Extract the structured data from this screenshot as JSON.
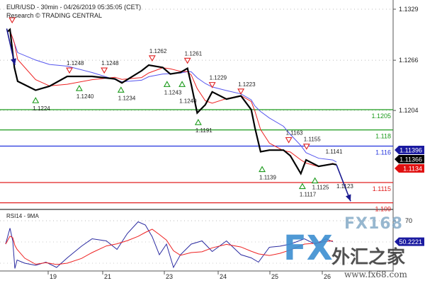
{
  "header": {
    "title": "EUR/USD - 30min - 04/26/2019 05:35:05 (CET)",
    "subtitle": "Research © TRADING CENTRAL"
  },
  "chart_data": [
    {
      "type": "line",
      "panel": "price",
      "ylim": [
        1.1085,
        1.1335
      ],
      "y_ticks": [
        "1.1329",
        "1.1266",
        "1.1204"
      ],
      "x_ticks": [
        "19",
        "21",
        "23",
        "24",
        "25",
        "26"
      ],
      "grid": true,
      "price": {
        "x": [
          18.25,
          18.3,
          18.38,
          18.44,
          18.77,
          19.05,
          19.7,
          20.61,
          21.4,
          21.63,
          22.27,
          22.5,
          22.95,
          23.11,
          23.3,
          23.43,
          23.5,
          23.61,
          23.76,
          23.89,
          24.16,
          24.44,
          24.64,
          24.71,
          24.82,
          24.99,
          25.26,
          25.39,
          25.59,
          25.69,
          25.93,
          26.2,
          26.27
        ],
        "y": [
          1.1301,
          1.1304,
          1.1257,
          1.124,
          1.1229,
          1.1234,
          1.1246,
          1.1246,
          1.1243,
          1.1238,
          1.1253,
          1.126,
          1.1257,
          1.1249,
          1.1251,
          1.1256,
          1.1236,
          1.1201,
          1.1211,
          1.1227,
          1.1218,
          1.1222,
          1.1205,
          1.1183,
          1.1153,
          1.1155,
          1.1155,
          1.1148,
          1.1126,
          1.1143,
          1.1135,
          1.1138,
          1.1137
        ]
      },
      "levels": [
        {
          "value": 1.1205,
          "label": "1.1205",
          "color": "#1a9a1a"
        },
        {
          "value": 1.118,
          "label": "1.118",
          "color": "#1a9a1a"
        },
        {
          "value": 1.116,
          "label": "1.116",
          "color": "#2233dd"
        },
        {
          "value": 1.1115,
          "label": "1.1115",
          "color": "#e02020"
        },
        {
          "value": 1.109,
          "label": "1.109",
          "color": "#e02020"
        }
      ],
      "markers": [
        {
          "x": 18.34,
          "y": 1.1315,
          "dir": "down",
          "label": ""
        },
        {
          "x": 19.78,
          "y": 1.1253,
          "dir": "down",
          "label": "1.1248"
        },
        {
          "x": 21.05,
          "y": 1.1253,
          "dir": "down",
          "label": "1.1248"
        },
        {
          "x": 22.61,
          "y": 1.1268,
          "dir": "down",
          "label": "1.1262"
        },
        {
          "x": 23.43,
          "y": 1.1265,
          "dir": "down",
          "label": "1.1261"
        },
        {
          "x": 23.89,
          "y": 1.1235,
          "dir": "down",
          "label": "1.1229"
        },
        {
          "x": 24.44,
          "y": 1.1227,
          "dir": "down",
          "label": "1.1223"
        },
        {
          "x": 25.36,
          "y": 1.1167,
          "dir": "down",
          "label": "1.1163"
        },
        {
          "x": 25.7,
          "y": 1.1159,
          "dir": "down",
          "label": "1.1155"
        },
        {
          "x": 18.77,
          "y": 1.1217,
          "dir": "up",
          "label": "1.1224"
        },
        {
          "x": 20.14,
          "y": 1.1232,
          "dir": "up",
          "label": "1.1240"
        },
        {
          "x": 21.6,
          "y": 1.123,
          "dir": "up",
          "label": "1.1234"
        },
        {
          "x": 23.05,
          "y": 1.1237,
          "dir": "up",
          "label": "1.1243"
        },
        {
          "x": 23.33,
          "y": 1.1237,
          "dir": "up",
          "label": "1.1240"
        },
        {
          "x": 23.63,
          "y": 1.119,
          "dir": "up",
          "label": "1.1191"
        },
        {
          "x": 24.85,
          "y": 1.1132,
          "dir": "up",
          "label": "1.1139"
        },
        {
          "x": 25.62,
          "y": 1.1111,
          "dir": "up",
          "label": "1.1117"
        },
        {
          "x": 25.86,
          "y": 1.1118,
          "dir": "up",
          "label": "1.1125"
        }
      ],
      "annotations": [
        {
          "x": 26.17,
          "y": 1.1151,
          "text": "1.1141"
        },
        {
          "x": 26.0,
          "y": 1.1108,
          "text": "1.1123"
        }
      ],
      "arrows": [
        {
          "from": [
            18.24,
            1.1305
          ],
          "to": [
            18.39,
            1.126
          ]
        },
        {
          "from": [
            26.27,
            1.1137
          ],
          "to": [
            26.54,
            1.1092
          ]
        }
      ],
      "badges": [
        {
          "text": "1.11396",
          "bg": "#1a1aa0",
          "value": 1.11396
        },
        {
          "text": "1.11366",
          "bg": "#000000",
          "value": 1.11366
        },
        {
          "text": "1.1134",
          "bg": "#e01010",
          "value": 1.1134
        }
      ],
      "colors": {
        "price": "#000000",
        "fast_ma": "#ee2222",
        "slow_ma": "#5555ee"
      }
    },
    {
      "type": "line",
      "panel": "rsi",
      "title": "RSI14 - 9MA",
      "y_ticks": [
        "70"
      ],
      "rsi": {
        "x": [
          18.22,
          18.3,
          18.35,
          18.39,
          18.43,
          18.57,
          18.77,
          18.96,
          19.31,
          19.7,
          20.22,
          20.61,
          21.12,
          21.47,
          21.81,
          22.16,
          22.39,
          22.61,
          22.84,
          23.04,
          23.17,
          23.3,
          23.5,
          23.7,
          23.89,
          24.16,
          24.44,
          24.64,
          24.78,
          24.99,
          25.19,
          25.39,
          25.66,
          25.86,
          26.07,
          26.2
        ],
        "y": [
          48,
          63,
          51,
          25,
          33,
          30,
          28,
          31,
          26,
          35,
          46,
          53,
          51,
          43,
          58,
          69,
          66,
          55,
          38,
          48,
          26,
          38,
          48,
          51,
          41,
          51,
          38,
          35,
          31,
          45,
          46,
          48,
          53,
          48,
          53,
          50.2221
        ]
      },
      "badge": {
        "text": "50.2221",
        "bg": "#1a1aa0"
      },
      "colors": {
        "rsi": "#2a2aa0",
        "ma": "#ee2222"
      }
    }
  ],
  "watermark": {
    "logo1": "FX168",
    "logo2_fx": "FX",
    "logo2_cn": "外汇之家",
    "url": "www.fx68.com"
  }
}
